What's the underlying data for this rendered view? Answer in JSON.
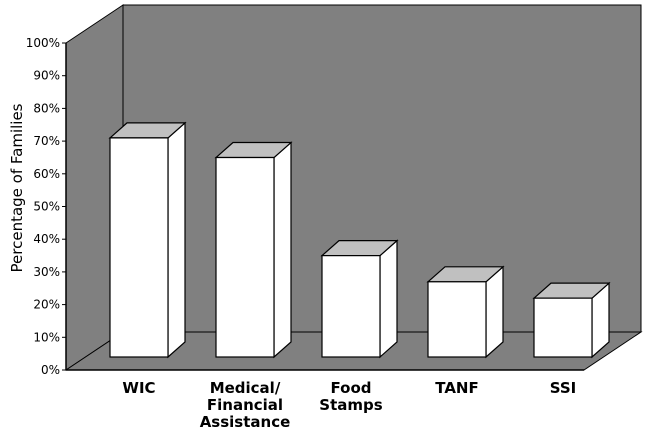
{
  "chart_data": {
    "type": "bar",
    "title": "",
    "xlabel": "",
    "ylabel": "Percentage of Families",
    "ylim": [
      0,
      100
    ],
    "yticks": [
      "0%",
      "10%",
      "20%",
      "30%",
      "40%",
      "50%",
      "60%",
      "70%",
      "80%",
      "90%",
      "100%"
    ],
    "categories": [
      [
        "WIC"
      ],
      [
        "Medical/",
        "Financial",
        "Assistance"
      ],
      [
        "Food",
        "Stamps"
      ],
      [
        "TANF"
      ],
      [
        "SSI"
      ]
    ],
    "values": [
      67,
      61,
      31,
      23,
      18
    ],
    "colors": {
      "back_wall": "#808080",
      "floor": "#808080",
      "bar_front": "#ffffff",
      "bar_top": "#c0c0c0",
      "bar_side": "#ffffff"
    }
  }
}
